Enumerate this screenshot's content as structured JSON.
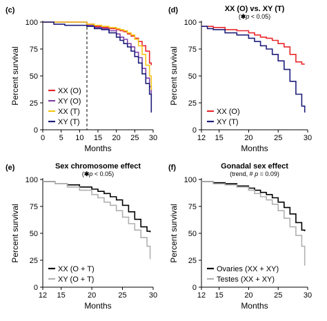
{
  "chart_data": [
    {
      "panel": "(c)",
      "type": "line",
      "title": "",
      "subtitle": "",
      "xlabel": "Months",
      "ylabel": "Percent survival",
      "xlim": [
        0,
        30
      ],
      "ylim": [
        0,
        100
      ],
      "xticks": [
        0,
        5,
        10,
        15,
        20,
        25,
        30
      ],
      "yticks": [
        0,
        25,
        50,
        75,
        100
      ],
      "reference_line_x": 12,
      "legend_position": "bottom-left",
      "series": [
        {
          "name": "XX (O)",
          "color": "#e8262b",
          "x": [
            0,
            9,
            12,
            14,
            16,
            18,
            20,
            21,
            22,
            23,
            24,
            25,
            26,
            27,
            28,
            29,
            29.5
          ],
          "y": [
            100,
            100,
            98,
            96,
            95,
            94,
            93,
            92,
            91,
            89,
            87,
            85,
            82,
            78,
            73,
            62,
            60
          ]
        },
        {
          "name": "XY (O)",
          "color": "#8040a8",
          "x": [
            0,
            10,
            12,
            14,
            16,
            18,
            20,
            21,
            22,
            23,
            24,
            25,
            26,
            27,
            28,
            29,
            29.5
          ],
          "y": [
            100,
            100,
            97,
            95,
            94,
            92,
            89,
            86,
            84,
            80,
            77,
            72,
            67,
            57,
            48,
            40,
            30
          ]
        },
        {
          "name": "XX (T)",
          "color": "#f5c518",
          "x": [
            0,
            10,
            12,
            14,
            16,
            18,
            20,
            21,
            22,
            23,
            24,
            25,
            26,
            27,
            28,
            29,
            29.5
          ],
          "y": [
            100,
            100,
            98,
            97,
            96,
            95,
            94,
            93,
            92,
            90,
            88,
            84,
            78,
            70,
            60,
            50,
            37
          ]
        },
        {
          "name": "XY (T)",
          "color": "#1d1d7a",
          "x": [
            0,
            3,
            6,
            9,
            12,
            14,
            16,
            18,
            20,
            21,
            22,
            23,
            24,
            25,
            26,
            27,
            28,
            29,
            29.5
          ],
          "y": [
            100,
            98,
            97,
            97,
            96,
            94,
            93,
            90,
            86,
            83,
            80,
            77,
            73,
            68,
            62,
            52,
            43,
            33,
            16
          ]
        }
      ]
    },
    {
      "panel": "(d)",
      "type": "line",
      "title": "XX (O) vs. XY (T)",
      "subtitle_star": "✱",
      "subtitle_p": "p",
      "subtitle_rest": " < 0.05)",
      "xlabel": "Months",
      "ylabel": "Percent survival",
      "xlim": [
        12,
        30
      ],
      "ylim": [
        0,
        100
      ],
      "xticks": [
        12,
        15,
        20,
        25,
        30
      ],
      "yticks": [
        0,
        25,
        50,
        75,
        100
      ],
      "legend_position": "bottom-left",
      "series": [
        {
          "name": "XX (O)",
          "color": "#e8262b",
          "x": [
            12,
            14,
            16,
            18,
            20,
            21,
            22,
            23,
            24,
            25,
            26,
            27,
            28,
            29,
            29.5
          ],
          "y": [
            96,
            95,
            93,
            92,
            90,
            88,
            86,
            85,
            83,
            80,
            77,
            70,
            63,
            61,
            61
          ]
        },
        {
          "name": "XY (T)",
          "color": "#1d1d7a",
          "x": [
            12,
            13,
            14,
            16,
            18,
            20,
            21,
            22,
            23,
            24,
            25,
            26,
            27,
            28,
            29,
            29.5
          ],
          "y": [
            96,
            94,
            93,
            90,
            88,
            85,
            82,
            78,
            75,
            70,
            64,
            56,
            45,
            33,
            22,
            16
          ]
        }
      ]
    },
    {
      "panel": "(e)",
      "type": "line",
      "title": "Sex chromosome effect",
      "subtitle_star": "✱",
      "subtitle_p": "p",
      "subtitle_rest": " < 0.05)",
      "xlabel": "Months",
      "ylabel": "Percent survival",
      "xlim": [
        12,
        30
      ],
      "ylim": [
        0,
        100
      ],
      "xticks": [
        12,
        15,
        20,
        25,
        30
      ],
      "yticks": [
        0,
        25,
        50,
        75,
        100
      ],
      "legend_position": "bottom-left",
      "series": [
        {
          "name": "XX (O + T)",
          "color": "#000000",
          "x": [
            12,
            14,
            16,
            18,
            20,
            21,
            22,
            23,
            24,
            25,
            26,
            27,
            28,
            29,
            29.5
          ],
          "y": [
            98,
            96,
            95,
            93,
            91,
            89,
            87,
            84,
            81,
            76,
            70,
            63,
            56,
            52,
            51
          ]
        },
        {
          "name": "XY (O + T)",
          "color": "#b0b0b0",
          "x": [
            12,
            14,
            16,
            18,
            20,
            21,
            22,
            23,
            24,
            25,
            26,
            27,
            28,
            29,
            29.5
          ],
          "y": [
            98,
            96,
            93,
            90,
            86,
            83,
            79,
            76,
            71,
            65,
            59,
            53,
            46,
            38,
            26
          ]
        }
      ]
    },
    {
      "panel": "(f)",
      "type": "line",
      "title": "Gonadal sex effect",
      "subtitle_pre": "(trend, # ",
      "subtitle_p": "p",
      "subtitle_rest": " = 0.09)",
      "xlabel": "Months",
      "ylabel": "Percent survival",
      "xlim": [
        12,
        30
      ],
      "ylim": [
        0,
        100
      ],
      "xticks": [
        12,
        15,
        20,
        25,
        30
      ],
      "yticks": [
        0,
        25,
        50,
        75,
        100
      ],
      "legend_position": "bottom-left",
      "series": [
        {
          "name": "Ovaries (XX + XY)",
          "color": "#000000",
          "x": [
            12,
            14,
            16,
            18,
            20,
            21,
            22,
            23,
            24,
            25,
            26,
            27,
            28,
            29,
            29.5
          ],
          "y": [
            98,
            97,
            96,
            94,
            92,
            90,
            88,
            86,
            83,
            79,
            74,
            68,
            60,
            53,
            52
          ]
        },
        {
          "name": "Testes (XX + XY)",
          "color": "#b0b0b0",
          "x": [
            12,
            14,
            16,
            18,
            20,
            21,
            22,
            23,
            24,
            25,
            26,
            27,
            28,
            29,
            29.5
          ],
          "y": [
            98,
            96,
            95,
            93,
            90,
            87,
            84,
            81,
            77,
            71,
            64,
            56,
            48,
            38,
            20
          ]
        }
      ]
    }
  ]
}
